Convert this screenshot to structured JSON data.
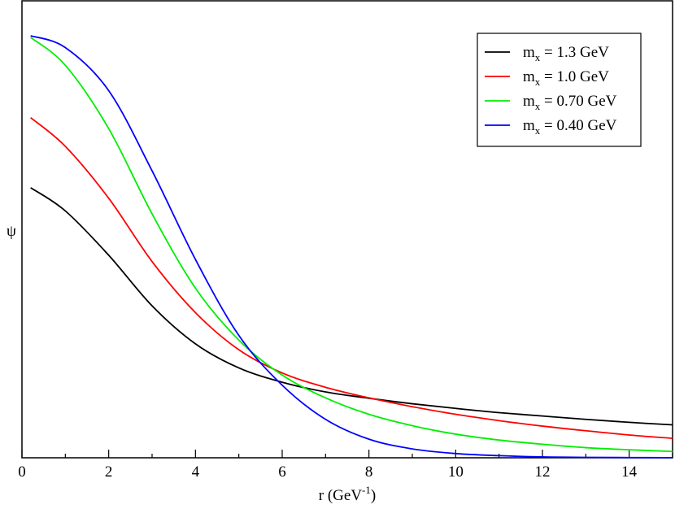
{
  "chart_data": {
    "type": "line",
    "xlabel": {
      "base": "r (GeV",
      "sup": "-1",
      "tail": ")"
    },
    "ylabel": "ψ",
    "xlim": [
      0,
      15
    ],
    "ylim": [
      0,
      1.0
    ],
    "x_ticks": [
      0,
      2,
      4,
      6,
      8,
      10,
      12,
      14
    ],
    "x_minor_step": 1,
    "grid": false,
    "legend_position": "top-right",
    "series": [
      {
        "name_prefix": "m",
        "name_sub": "x",
        "name_suffix": " = 1.3 GeV",
        "color": "#000000",
        "x": [
          0.2,
          1,
          2,
          3,
          4,
          5,
          6,
          7,
          8,
          9,
          10,
          11,
          12,
          13,
          14,
          15
        ],
        "y": [
          0.64,
          0.585,
          0.48,
          0.36,
          0.27,
          0.213,
          0.179,
          0.156,
          0.141,
          0.128,
          0.117,
          0.107,
          0.099,
          0.091,
          0.084,
          0.078
        ]
      },
      {
        "name_prefix": "m",
        "name_sub": "x",
        "name_suffix": " = 1.0 GeV",
        "color": "#ff0000",
        "x": [
          0.2,
          1,
          2,
          3,
          4,
          5,
          6,
          7,
          8,
          9,
          10,
          11,
          12,
          13,
          14,
          15
        ],
        "y": [
          0.806,
          0.738,
          0.615,
          0.465,
          0.344,
          0.256,
          0.201,
          0.167,
          0.142,
          0.121,
          0.103,
          0.088,
          0.075,
          0.064,
          0.054,
          0.046
        ]
      },
      {
        "name_prefix": "m",
        "name_sub": "x",
        "name_suffix": " = 0.70 GeV",
        "color": "#00ee00",
        "x": [
          0.2,
          1,
          2,
          3,
          4,
          5,
          6,
          7,
          8,
          9,
          10,
          11,
          12,
          13,
          14,
          15
        ],
        "y": [
          0.996,
          0.93,
          0.78,
          0.578,
          0.402,
          0.279,
          0.196,
          0.142,
          0.103,
          0.076,
          0.056,
          0.042,
          0.032,
          0.024,
          0.019,
          0.015
        ]
      },
      {
        "name_prefix": "m",
        "name_sub": "x",
        "name_suffix": " = 0.40 GeV",
        "color": "#0000ff",
        "x": [
          0.2,
          1,
          2,
          3,
          4,
          5,
          6,
          7,
          8,
          9,
          10,
          11,
          12,
          13,
          14,
          15
        ],
        "y": [
          1.0,
          0.972,
          0.87,
          0.68,
          0.47,
          0.29,
          0.172,
          0.091,
          0.044,
          0.021,
          0.01,
          0.005,
          0.002,
          0.001,
          0.0005,
          0.0002
        ]
      }
    ]
  }
}
